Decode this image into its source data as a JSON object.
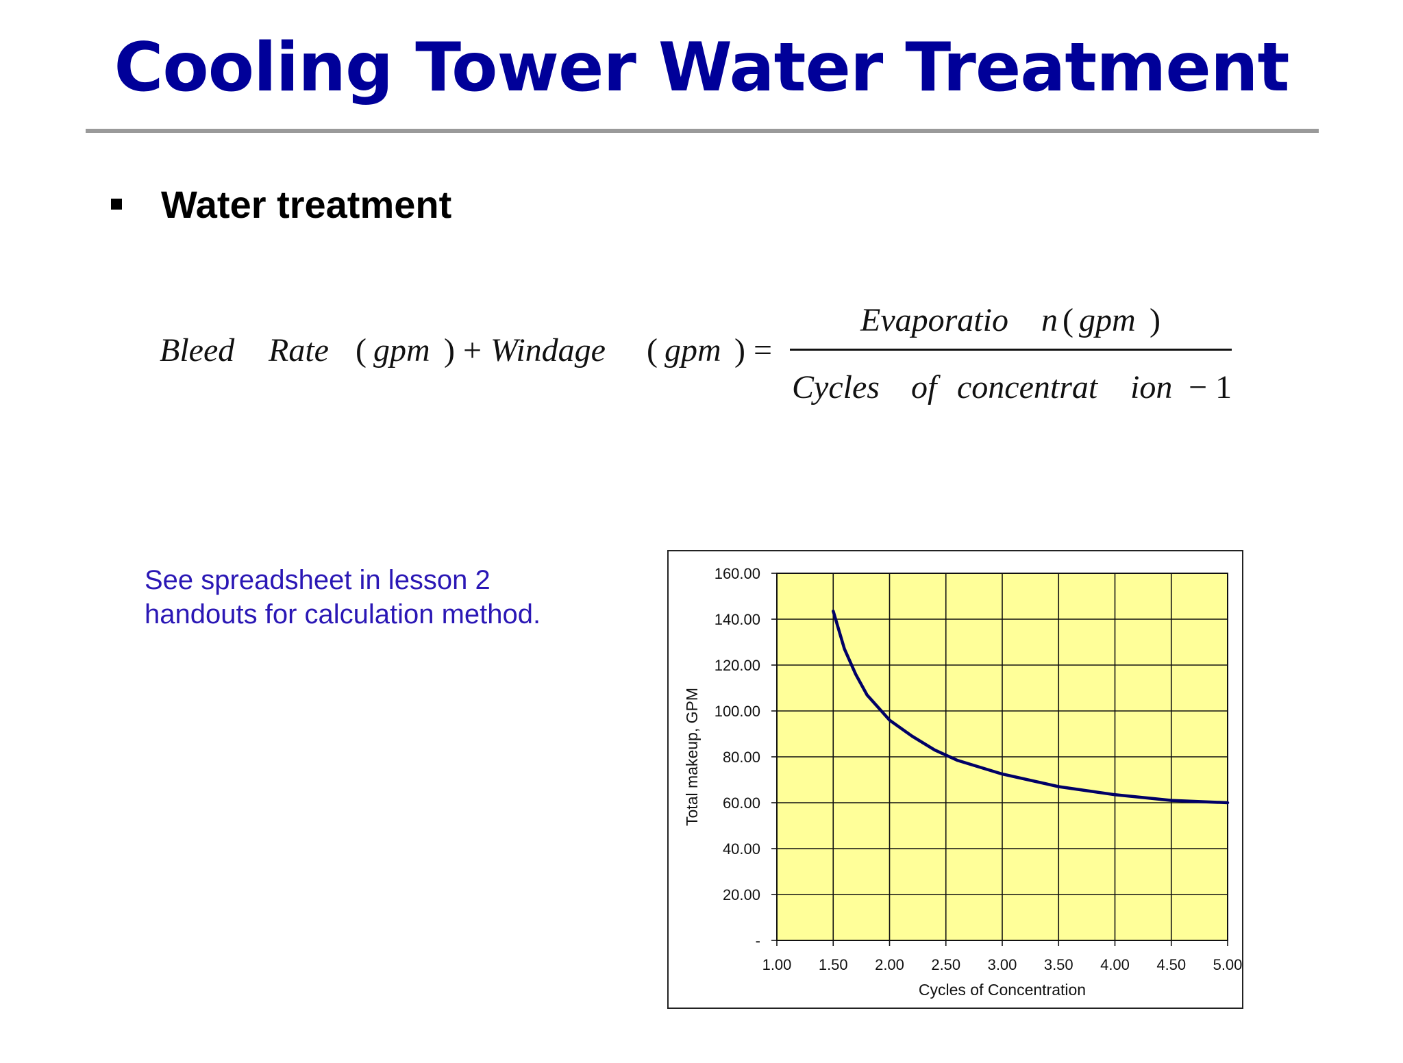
{
  "slide": {
    "title": "Cooling Tower Water Treatment",
    "bullet": "Water treatment",
    "note_lines": [
      "See spreadsheet in lesson 2",
      "handouts for calculation method."
    ]
  },
  "equation": {
    "lhs": {
      "bleed": "Bleed",
      "rate": "Rate",
      "gpm_open": "(",
      "gpm1": "gpm",
      "gpm_close_plus": ") +",
      "windage": "Windage",
      "gpm2_open": "(",
      "gpm2": "gpm",
      "gpm2_close_eq": ") ="
    },
    "numerator": {
      "evap": "Evaporatio",
      "n": "n",
      "open": "(",
      "gpm": "gpm",
      "close": ")"
    },
    "denominator": {
      "cycles": "Cycles",
      "of": "of",
      "concentrat": "concentrat",
      "ion": "ion",
      "minus_one": "− 1"
    }
  },
  "colors": {
    "title": "#000099",
    "note": "#2a17b5",
    "plot_background": "#ffff99",
    "curve": "#000066",
    "grid": "#111111"
  },
  "chart_data": {
    "type": "line",
    "xlabel": "Cycles of Concentration",
    "ylabel": "Total makeup, GPM",
    "xlim": [
      1.0,
      5.0
    ],
    "ylim": [
      0,
      160
    ],
    "x_ticks": [
      "1.00",
      "1.50",
      "2.00",
      "2.50",
      "3.00",
      "3.50",
      "4.00",
      "4.50",
      "5.00"
    ],
    "y_ticks": [
      "-",
      "20.00",
      "40.00",
      "60.00",
      "80.00",
      "100.00",
      "120.00",
      "140.00",
      "160.00"
    ],
    "grid": true,
    "series": [
      {
        "x": [
          1.5,
          1.6,
          1.7,
          1.8,
          2.0,
          2.2,
          2.4,
          2.6,
          3.0,
          3.5,
          4.0,
          4.5,
          5.0
        ],
        "values": [
          143.5,
          127,
          116,
          107,
          96,
          89,
          83,
          78.5,
          72.5,
          67,
          63.5,
          61,
          60
        ]
      }
    ]
  }
}
